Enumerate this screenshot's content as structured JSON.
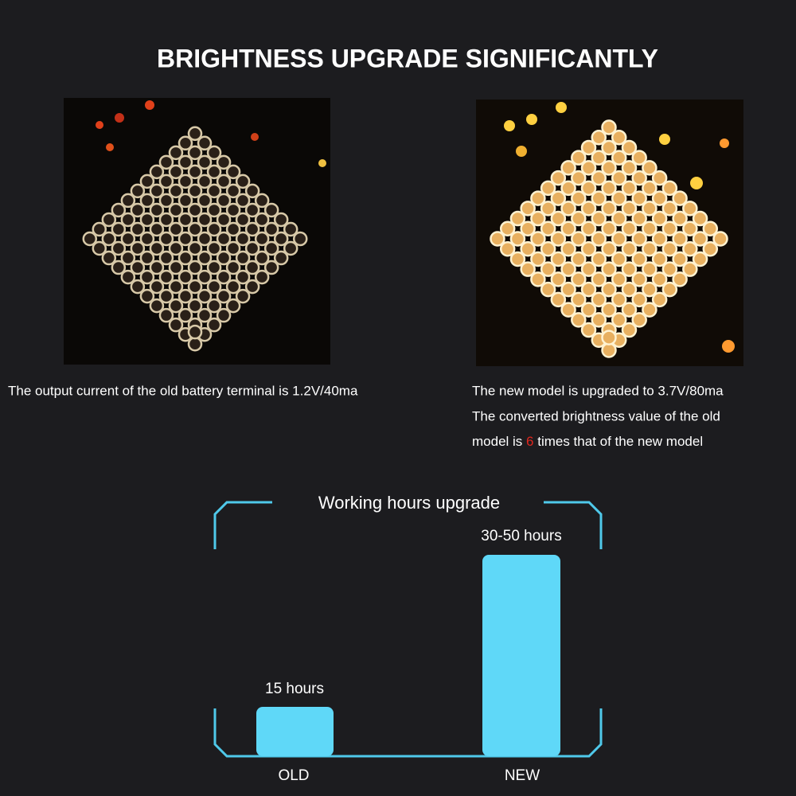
{
  "header": {
    "title": "BRIGHTNESS UPGRADE SIGNIFICANTLY"
  },
  "old_panel": {
    "caption": "The output current of the old battery terminal is 1.2V/40ma"
  },
  "new_panel": {
    "caption_lines": [
      "The new model is upgraded to 3.7V/80ma",
      "The converted brightness value of the old"
    ],
    "caption_last": {
      "before": "model is ",
      "highlight": "6",
      "after": " times that of the new model"
    }
  },
  "hours": {
    "title": "Working hours upgrade",
    "bars": [
      {
        "label": "OLD",
        "value_label": "15 hours"
      },
      {
        "label": "NEW",
        "value_label": "30-50 hours"
      }
    ]
  }
}
